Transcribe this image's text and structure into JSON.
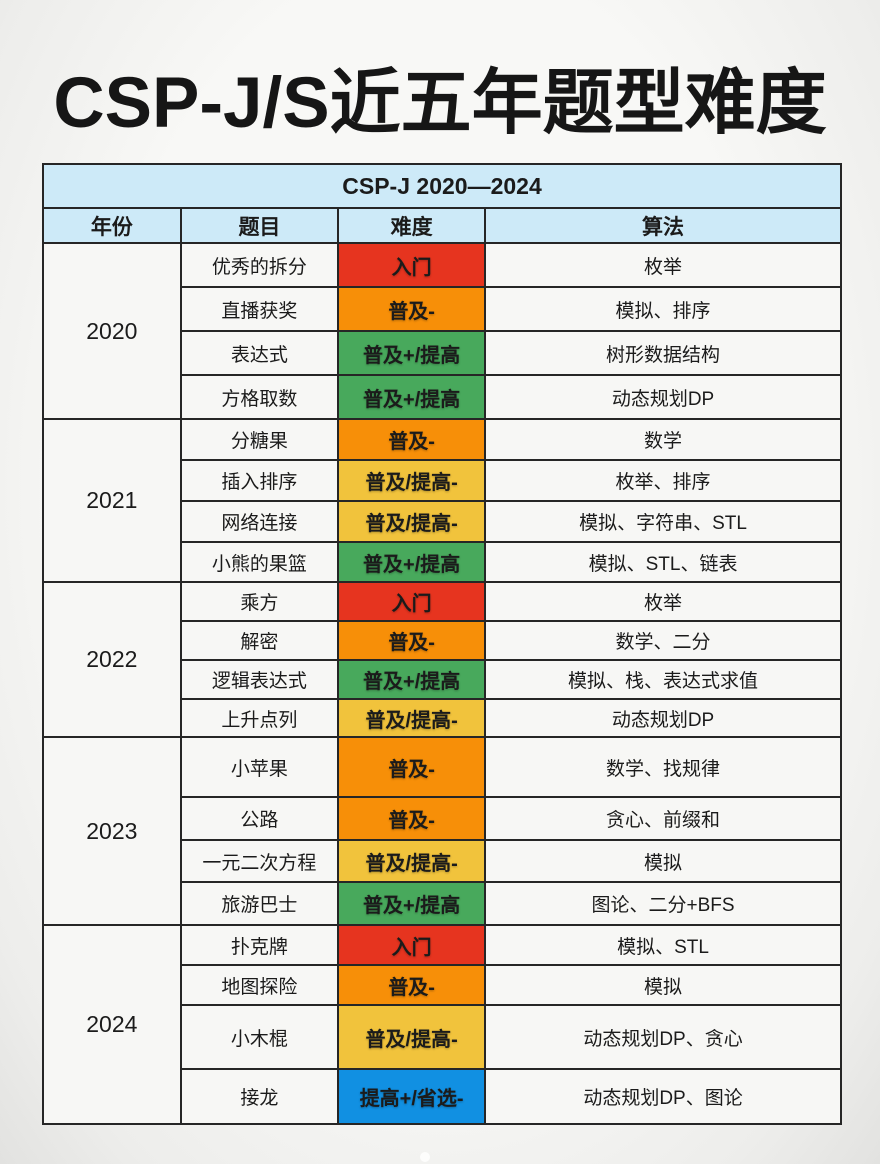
{
  "title": "CSP-J/S近五年题型难度",
  "table": {
    "caption": "CSP-J 2020—2024",
    "columns": [
      "年份",
      "题目",
      "难度",
      "算法"
    ],
    "header_bg": "#cdeaf8",
    "border_color": "#262626",
    "difficulty_colors": {
      "red": "#e6341f",
      "orange": "#f78f08",
      "yellow": "#f1c33c",
      "green": "#48a95c",
      "blue": "#1190e2"
    },
    "groups": [
      {
        "year": "2020",
        "rows": [
          {
            "problem": "优秀的拆分",
            "difficulty": "入门",
            "color": "red",
            "algorithms": "枚举"
          },
          {
            "problem": "直播获奖",
            "difficulty": "普及-",
            "color": "orange",
            "algorithms": "模拟、排序"
          },
          {
            "problem": "表达式",
            "difficulty": "普及+/提高",
            "color": "green",
            "algorithms": "树形数据结构"
          },
          {
            "problem": "方格取数",
            "difficulty": "普及+/提高",
            "color": "green",
            "algorithms": "动态规划DP"
          }
        ]
      },
      {
        "year": "2021",
        "rows": [
          {
            "problem": "分糖果",
            "difficulty": "普及-",
            "color": "orange",
            "algorithms": "数学"
          },
          {
            "problem": "插入排序",
            "difficulty": "普及/提高-",
            "color": "yellow",
            "algorithms": "枚举、排序"
          },
          {
            "problem": "网络连接",
            "difficulty": "普及/提高-",
            "color": "yellow",
            "algorithms": "模拟、字符串、STL"
          },
          {
            "problem": "小熊的果篮",
            "difficulty": "普及+/提高",
            "color": "green",
            "algorithms": "模拟、STL、链表"
          }
        ]
      },
      {
        "year": "2022",
        "rows": [
          {
            "problem": "乘方",
            "difficulty": "入门",
            "color": "red",
            "algorithms": "枚举"
          },
          {
            "problem": "解密",
            "difficulty": "普及-",
            "color": "orange",
            "algorithms": "数学、二分"
          },
          {
            "problem": "逻辑表达式",
            "difficulty": "普及+/提高",
            "color": "green",
            "algorithms": "模拟、栈、表达式求值"
          },
          {
            "problem": "上升点列",
            "difficulty": "普及/提高-",
            "color": "yellow",
            "algorithms": "动态规划DP"
          }
        ]
      },
      {
        "year": "2023",
        "rows": [
          {
            "problem": "小苹果",
            "difficulty": "普及-",
            "color": "orange",
            "algorithms": "数学、找规律"
          },
          {
            "problem": "公路",
            "difficulty": "普及-",
            "color": "orange",
            "algorithms": "贪心、前缀和"
          },
          {
            "problem": "一元二次方程",
            "difficulty": "普及/提高-",
            "color": "yellow",
            "algorithms": "模拟"
          },
          {
            "problem": "旅游巴士",
            "difficulty": "普及+/提高",
            "color": "green",
            "algorithms": "图论、二分+BFS"
          }
        ]
      },
      {
        "year": "2024",
        "rows": [
          {
            "problem": "扑克牌",
            "difficulty": "入门",
            "color": "red",
            "algorithms": "模拟、STL"
          },
          {
            "problem": "地图探险",
            "difficulty": "普及-",
            "color": "orange",
            "algorithms": "模拟"
          },
          {
            "problem": "小木棍",
            "difficulty": "普及/提高-",
            "color": "yellow",
            "algorithms": "动态规划DP、贪心"
          },
          {
            "problem": "接龙",
            "difficulty": "提高+/省选-",
            "color": "blue",
            "algorithms": "动态规划DP、图论"
          }
        ]
      }
    ]
  }
}
